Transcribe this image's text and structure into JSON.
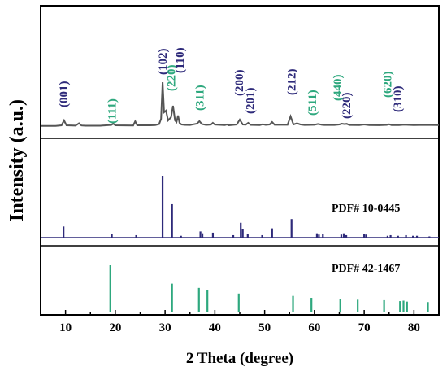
{
  "chart_data": {
    "type": "line",
    "xlabel": "2 Theta (degree)",
    "ylabel": "Intensity (a.u.)",
    "xlim": [
      5,
      85
    ],
    "x_ticks": [
      10,
      20,
      30,
      40,
      50,
      60,
      70,
      80
    ],
    "y_ticks_shown": false,
    "colors": {
      "axes": "#000000",
      "pattern": "#555555",
      "ref1": "#2e2a7a",
      "ref2": "#2ea87e"
    },
    "series": [
      {
        "kind": "line",
        "color": "#555555",
        "x": [
          5,
          8,
          9.2,
          9.7,
          10.2,
          12,
          12.7,
          13.2,
          14,
          17,
          19.2,
          19.6,
          20,
          23.6,
          24.0,
          24.4,
          27,
          28,
          28.8,
          29.2,
          29.5,
          29.8,
          30.2,
          30.6,
          31.2,
          31.6,
          32.0,
          32.3,
          32.6,
          32.9,
          33.3,
          34,
          35,
          36.4,
          36.9,
          37.4,
          38.2,
          39.2,
          39.6,
          40,
          42,
          42.4,
          42.8,
          44.4,
          45.0,
          45.6,
          46.2,
          46.7,
          47.2,
          49,
          49.6,
          50.2,
          51.0,
          51.5,
          52.0,
          54.6,
          55.2,
          55.8,
          56.5,
          57.2,
          58,
          60,
          60.7,
          61.5,
          62,
          64,
          65,
          65.5,
          66,
          66.5,
          67,
          69,
          70,
          71,
          73,
          74.5,
          75,
          75.5,
          77,
          78,
          80,
          82,
          85
        ],
        "y": [
          1.2,
          1.3,
          2,
          8,
          2,
          1.6,
          4.5,
          1.8,
          1.5,
          1.5,
          2.5,
          4,
          2,
          1.8,
          7,
          2,
          2,
          2.2,
          3.5,
          10,
          55,
          18,
          20,
          8,
          12,
          26,
          8,
          6,
          14,
          5,
          3,
          2.5,
          2.4,
          4,
          7,
          3.5,
          2.5,
          2.8,
          5,
          2.8,
          2.2,
          3,
          2,
          3,
          9,
          3,
          2.8,
          5,
          2.5,
          2.3,
          3.2,
          2.5,
          3,
          6,
          2.6,
          2.6,
          13,
          3,
          4.5,
          3,
          2.4,
          2.6,
          3.6,
          2.6,
          2.4,
          2.4,
          3,
          4,
          3.5,
          3.8,
          2.4,
          2.2,
          3,
          2.2,
          2.1,
          2.5,
          3.2,
          2.3,
          2.3,
          2.8,
          2.2,
          2.5,
          2.2
        ]
      },
      {
        "kind": "sticks",
        "label": "PDF# 10-0445",
        "color": "#2e2a7a",
        "x": [
          9.6,
          19.3,
          24.2,
          29.5,
          31.4,
          33.2,
          37.1,
          37.5,
          39.6,
          43.7,
          45.2,
          45.6,
          46.6,
          49.5,
          51.5,
          55.4,
          60.5,
          60.9,
          61.7,
          65.4,
          65.9,
          66.4,
          70.0,
          70.4,
          74.7,
          75.3,
          76.8,
          78.4,
          79.8,
          80.6,
          83.1
        ],
        "y": [
          18,
          6,
          4,
          100,
          54,
          3,
          10,
          7,
          8,
          4,
          24,
          14,
          6,
          4,
          15,
          30,
          7,
          5,
          6,
          5,
          7,
          4,
          6,
          5,
          3,
          4,
          3,
          4,
          3,
          3,
          2
        ]
      },
      {
        "kind": "sticks",
        "label": "PDF# 42-1467",
        "color": "#2ea87e",
        "x": [
          19.0,
          31.4,
          36.8,
          38.5,
          44.8,
          55.7,
          59.4,
          65.2,
          68.7,
          74.0,
          77.2,
          77.9,
          78.6,
          82.8
        ],
        "y": [
          100,
          61,
          52,
          48,
          40,
          35,
          31,
          29,
          27,
          26,
          24,
          25,
          23,
          22
        ]
      }
    ],
    "annotations": [
      {
        "text": "(001)",
        "x": 9.6,
        "color": "#2e2a7a"
      },
      {
        "text": "(111)",
        "x": 19.3,
        "color": "#2ea87e"
      },
      {
        "text": "(102)",
        "x": 29.5,
        "color": "#2e2a7a"
      },
      {
        "text": "(220)",
        "x": 31.2,
        "color": "#2ea87e"
      },
      {
        "text": "(110)",
        "x": 32.9,
        "color": "#2e2a7a"
      },
      {
        "text": "(311)",
        "x": 36.9,
        "color": "#2ea87e"
      },
      {
        "text": "(200)",
        "x": 44.8,
        "color": "#2e2a7a"
      },
      {
        "text": "(201)",
        "x": 47.0,
        "color": "#2e2a7a"
      },
      {
        "text": "(212)",
        "x": 55.4,
        "color": "#2e2a7a"
      },
      {
        "text": "(511)",
        "x": 59.5,
        "color": "#2ea87e"
      },
      {
        "text": "(440)",
        "x": 64.6,
        "color": "#2ea87e"
      },
      {
        "text": "(220)",
        "x": 66.4,
        "color": "#2e2a7a"
      },
      {
        "text": "(620)",
        "x": 74.6,
        "color": "#2ea87e"
      },
      {
        "text": "(310)",
        "x": 76.7,
        "color": "#2e2a7a"
      }
    ]
  }
}
